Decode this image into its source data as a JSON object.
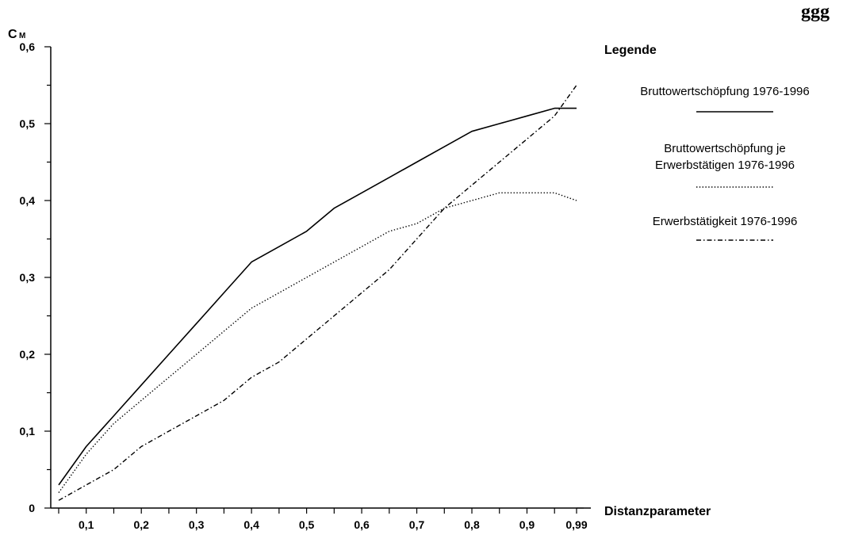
{
  "page": {
    "top_text_fragment": "ggg"
  },
  "chart_data": {
    "type": "line",
    "title": "",
    "ylabel_main": "C",
    "ylabel_sub": "M",
    "xlabel": "Distanzparameter",
    "x": [
      0.05,
      0.1,
      0.15,
      0.2,
      0.25,
      0.3,
      0.35,
      0.4,
      0.45,
      0.5,
      0.55,
      0.6,
      0.65,
      0.7,
      0.75,
      0.8,
      0.85,
      0.9,
      0.95,
      0.99
    ],
    "x_tick_values": [
      0.1,
      0.2,
      0.3,
      0.4,
      0.5,
      0.6,
      0.7,
      0.8,
      0.9,
      0.99
    ],
    "x_tick_labels": [
      "0,1",
      "0,2",
      "0,3",
      "0,4",
      "0,5",
      "0,6",
      "0,7",
      "0,8",
      "0,9",
      "0,99"
    ],
    "y_tick_values": [
      0,
      0.1,
      0.2,
      0.3,
      0.4,
      0.5,
      0.6
    ],
    "y_tick_labels": [
      "0",
      "0,1",
      "0,2",
      "0,3",
      "0,4",
      "0,5",
      "0,6"
    ],
    "ylim": [
      0,
      0.6
    ],
    "grid": false,
    "legend": {
      "title": "Legende",
      "placement": "right"
    },
    "series": [
      {
        "name_lines": [
          "Bruttowertschöpfung 1976-1996"
        ],
        "style": "solid",
        "color": "#000000",
        "values": [
          0.03,
          0.08,
          0.12,
          0.16,
          0.2,
          0.24,
          0.28,
          0.32,
          0.34,
          0.36,
          0.39,
          0.41,
          0.43,
          0.45,
          0.47,
          0.49,
          0.5,
          0.51,
          0.52,
          0.52
        ]
      },
      {
        "name_lines": [
          "Bruttowertschöpfung je",
          "Erwerbstätigen 1976-1996"
        ],
        "style": "dotted",
        "color": "#000000",
        "values": [
          0.02,
          0.07,
          0.11,
          0.14,
          0.17,
          0.2,
          0.23,
          0.26,
          0.28,
          0.3,
          0.32,
          0.34,
          0.36,
          0.37,
          0.39,
          0.4,
          0.41,
          0.41,
          0.41,
          0.4
        ]
      },
      {
        "name_lines": [
          "Erwerbstätigkeit 1976-1996"
        ],
        "style": "dashdot",
        "color": "#000000",
        "values": [
          0.01,
          0.03,
          0.05,
          0.08,
          0.1,
          0.12,
          0.14,
          0.17,
          0.19,
          0.22,
          0.25,
          0.28,
          0.31,
          0.35,
          0.39,
          0.42,
          0.45,
          0.48,
          0.51,
          0.55
        ]
      }
    ]
  }
}
